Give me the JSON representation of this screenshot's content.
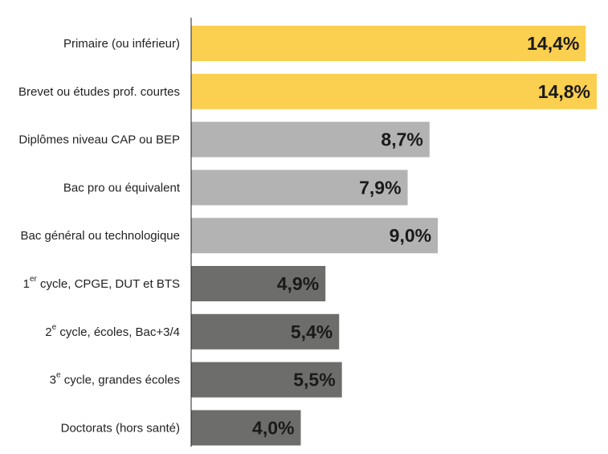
{
  "chart_data": {
    "type": "bar",
    "orientation": "horizontal",
    "categories": [
      {
        "pre": "Primaire (ou inférieur)",
        "sup": "",
        "post": ""
      },
      {
        "pre": "Brevet ou études prof. courtes",
        "sup": "",
        "post": ""
      },
      {
        "pre": "Diplômes niveau CAP ou BEP",
        "sup": "",
        "post": ""
      },
      {
        "pre": "Bac pro ou équivalent",
        "sup": "",
        "post": ""
      },
      {
        "pre": "Bac général ou technologique",
        "sup": "",
        "post": ""
      },
      {
        "pre": "1",
        "sup": "er",
        "post": " cycle, CPGE, DUT et BTS"
      },
      {
        "pre": "2",
        "sup": "e",
        "post": " cycle, écoles, Bac+3/4"
      },
      {
        "pre": "3",
        "sup": "e",
        "post": " cycle, grandes écoles"
      },
      {
        "pre": "Doctorats (hors santé)",
        "sup": "",
        "post": ""
      }
    ],
    "values": [
      14.4,
      14.8,
      8.7,
      7.9,
      9.0,
      4.9,
      5.4,
      5.5,
      4.0
    ],
    "value_labels": [
      "14,4%",
      "14,8%",
      "8,7%",
      "7,9%",
      "9,0%",
      "4,9%",
      "5,4%",
      "5,5%",
      "4,0%"
    ],
    "bar_colors": [
      "#fbcf4f",
      "#fbcf4f",
      "#b3b3b3",
      "#b3b3b3",
      "#b3b3b3",
      "#6d6d6b",
      "#6d6d6b",
      "#6d6d6b",
      "#6d6d6b"
    ],
    "xlim": [
      0,
      14.8
    ],
    "title": "",
    "xlabel": "",
    "ylabel": "",
    "grid": false,
    "legend": "none"
  }
}
